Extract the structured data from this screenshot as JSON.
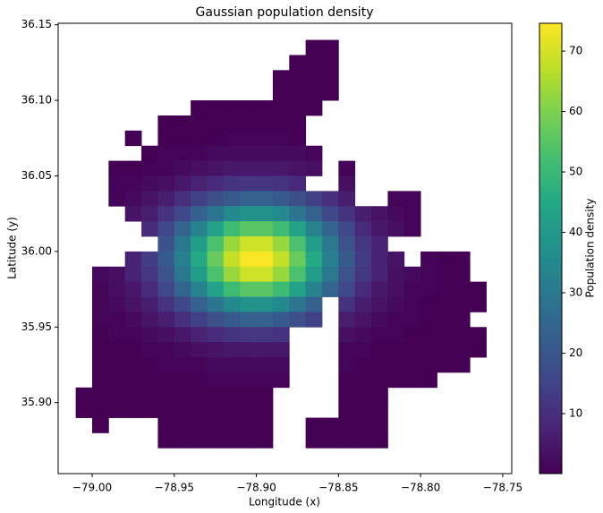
{
  "chart_data": {
    "type": "heatmap",
    "title": "Gaussian population density",
    "xlabel": "Longitude (x)",
    "ylabel": "Latitude (y)",
    "colorbar_label": "Population density",
    "colormap": "viridis",
    "xlim": [
      -79.0207,
      -78.7445
    ],
    "ylim": [
      35.853,
      36.151
    ],
    "xticks": [
      {
        "value": -79.0,
        "label": "−79.00"
      },
      {
        "value": -78.95,
        "label": "−78.95"
      },
      {
        "value": -78.9,
        "label": "−78.90"
      },
      {
        "value": -78.85,
        "label": "−78.85"
      },
      {
        "value": -78.8,
        "label": "−78.80"
      },
      {
        "value": -78.75,
        "label": "−78.75"
      }
    ],
    "yticks": [
      {
        "value": 35.9,
        "label": "35.90"
      },
      35.95,
      {
        "value": 36.0,
        "label": "36.00"
      },
      36.05,
      {
        "value": 36.1,
        "label": "36.10"
      },
      36.15
    ],
    "clim": [
      0.07,
      74.6
    ],
    "cticks": [
      10,
      20,
      30,
      40,
      50,
      60,
      70
    ],
    "x": [
      -79.005,
      -78.995,
      -78.985,
      -78.975,
      -78.965,
      -78.955,
      -78.945,
      -78.935,
      -78.925,
      -78.915,
      -78.905,
      -78.895,
      -78.885,
      -78.875,
      -78.865,
      -78.855,
      -78.845,
      -78.835,
      -78.825,
      -78.815,
      -78.805,
      -78.795,
      -78.785,
      -78.775,
      -78.765
    ],
    "y": [
      36.135,
      36.125,
      36.115,
      36.105,
      36.095,
      36.085,
      36.075,
      36.065,
      36.055,
      36.045,
      36.035,
      36.025,
      36.015,
      36.005,
      35.995,
      35.985,
      35.975,
      35.965,
      35.955,
      35.945,
      35.935,
      35.925,
      35.915,
      35.905,
      35.895,
      35.885,
      35.875
    ],
    "values": [
      [
        null,
        null,
        null,
        null,
        null,
        null,
        null,
        null,
        null,
        null,
        null,
        null,
        null,
        null,
        0,
        0,
        null,
        null,
        null,
        null,
        null,
        null,
        null,
        null,
        null
      ],
      [
        null,
        null,
        null,
        null,
        null,
        null,
        null,
        null,
        null,
        null,
        null,
        null,
        null,
        0,
        0,
        0,
        null,
        null,
        null,
        null,
        null,
        null,
        null,
        null,
        null
      ],
      [
        null,
        null,
        null,
        null,
        null,
        null,
        null,
        null,
        null,
        null,
        null,
        null,
        0,
        0,
        0,
        0,
        null,
        null,
        null,
        null,
        null,
        null,
        null,
        null,
        null
      ],
      [
        null,
        null,
        null,
        null,
        null,
        null,
        null,
        null,
        null,
        null,
        null,
        null,
        0,
        0,
        0,
        0,
        null,
        null,
        null,
        null,
        null,
        null,
        null,
        null,
        null
      ],
      [
        null,
        null,
        null,
        null,
        null,
        null,
        null,
        0,
        0,
        0,
        0,
        0,
        0,
        0,
        0,
        null,
        null,
        null,
        null,
        null,
        null,
        null,
        null,
        null,
        null
      ],
      [
        null,
        null,
        null,
        null,
        null,
        0,
        0,
        0,
        0,
        0,
        0,
        0,
        0,
        0,
        null,
        null,
        null,
        null,
        null,
        null,
        null,
        null,
        null,
        null,
        null
      ],
      [
        null,
        null,
        null,
        0,
        null,
        0,
        0,
        0,
        0,
        1,
        1,
        1,
        1,
        0,
        null,
        null,
        null,
        null,
        null,
        null,
        null,
        null,
        null,
        null,
        null
      ],
      [
        null,
        null,
        null,
        null,
        0,
        1,
        1,
        1,
        2,
        2,
        2,
        2,
        2,
        2,
        1,
        null,
        null,
        null,
        null,
        null,
        null,
        null,
        null,
        null,
        null
      ],
      [
        null,
        null,
        0,
        0,
        1,
        1,
        2,
        3,
        4,
        5,
        5,
        5,
        5,
        4,
        3,
        null,
        1,
        null,
        null,
        null,
        null,
        null,
        null,
        null,
        null
      ],
      [
        null,
        null,
        1,
        1,
        2,
        3,
        5,
        7,
        9,
        11,
        12,
        12,
        11,
        9,
        null,
        null,
        3,
        null,
        null,
        null,
        null,
        null,
        null,
        null,
        null
      ],
      [
        null,
        null,
        1,
        2,
        4,
        6,
        10,
        14,
        18,
        21,
        23,
        23,
        21,
        18,
        14,
        10,
        6,
        null,
        null,
        1,
        1,
        null,
        null,
        null,
        null
      ],
      [
        null,
        null,
        null,
        4,
        6,
        11,
        16,
        23,
        29,
        35,
        38,
        38,
        35,
        29,
        23,
        16,
        11,
        6,
        4,
        2,
        1,
        null,
        null,
        null,
        null
      ],
      [
        null,
        null,
        null,
        null,
        9,
        16,
        24,
        33,
        43,
        51,
        55,
        55,
        51,
        43,
        33,
        24,
        16,
        9,
        5,
        3,
        1,
        null,
        null,
        null,
        null
      ],
      [
        null,
        null,
        null,
        null,
        null,
        19,
        30,
        41,
        53,
        63,
        69,
        69,
        63,
        53,
        41,
        30,
        19,
        12,
        7,
        null,
        null,
        null,
        null,
        null,
        null
      ],
      [
        null,
        null,
        null,
        7,
        13,
        21,
        32,
        45,
        57,
        68,
        74,
        74,
        68,
        57,
        45,
        32,
        21,
        13,
        7,
        4,
        null,
        1,
        0,
        0,
        null
      ],
      [
        null,
        2,
        3,
        7,
        12,
        19,
        30,
        41,
        53,
        63,
        69,
        69,
        63,
        53,
        41,
        30,
        19,
        12,
        7,
        3,
        2,
        1,
        0,
        0,
        null
      ],
      [
        null,
        1,
        3,
        5,
        9,
        16,
        24,
        33,
        43,
        51,
        55,
        55,
        51,
        43,
        33,
        24,
        16,
        9,
        5,
        3,
        1,
        1,
        0,
        0,
        0
      ],
      [
        null,
        1,
        2,
        4,
        6,
        11,
        16,
        23,
        29,
        35,
        38,
        38,
        35,
        29,
        23,
        null,
        11,
        6,
        4,
        2,
        1,
        0,
        0,
        0,
        0
      ],
      [
        null,
        1,
        1,
        2,
        4,
        6,
        10,
        14,
        18,
        21,
        23,
        23,
        21,
        18,
        14,
        null,
        6,
        4,
        2,
        1,
        1,
        0,
        0,
        0,
        null
      ],
      [
        null,
        0,
        1,
        1,
        2,
        3,
        5,
        7,
        9,
        11,
        12,
        12,
        11,
        null,
        null,
        null,
        3,
        2,
        1,
        1,
        0,
        0,
        0,
        0,
        0
      ],
      [
        null,
        0,
        0,
        0,
        1,
        1,
        2,
        3,
        4,
        5,
        5,
        5,
        5,
        null,
        null,
        null,
        1,
        1,
        0,
        0,
        0,
        0,
        0,
        0,
        0
      ],
      [
        null,
        0,
        0,
        0,
        0,
        1,
        1,
        1,
        2,
        2,
        2,
        2,
        2,
        null,
        null,
        null,
        1,
        0,
        0,
        0,
        0,
        0,
        0,
        0,
        null
      ],
      [
        null,
        0,
        0,
        0,
        0,
        0,
        0,
        0,
        1,
        1,
        1,
        1,
        1,
        null,
        null,
        null,
        0,
        0,
        0,
        0,
        0,
        0,
        null,
        null,
        null
      ],
      [
        0,
        0,
        0,
        0,
        0,
        0,
        0,
        0,
        0,
        0,
        0,
        0,
        null,
        null,
        null,
        null,
        0,
        0,
        0,
        null,
        null,
        null,
        null,
        null,
        null
      ],
      [
        0,
        0,
        0,
        0,
        0,
        0,
        0,
        0,
        0,
        0,
        0,
        0,
        null,
        null,
        null,
        null,
        0,
        0,
        0,
        null,
        null,
        null,
        null,
        null,
        null
      ],
      [
        null,
        0,
        null,
        null,
        null,
        0,
        0,
        0,
        0,
        0,
        0,
        0,
        null,
        null,
        0,
        0,
        0,
        0,
        0,
        null,
        null,
        null,
        null,
        null,
        null
      ],
      [
        null,
        null,
        null,
        null,
        null,
        0,
        0,
        0,
        0,
        0,
        0,
        0,
        null,
        null,
        0,
        0,
        0,
        0,
        0,
        null,
        null,
        null,
        null,
        null,
        null
      ]
    ]
  }
}
